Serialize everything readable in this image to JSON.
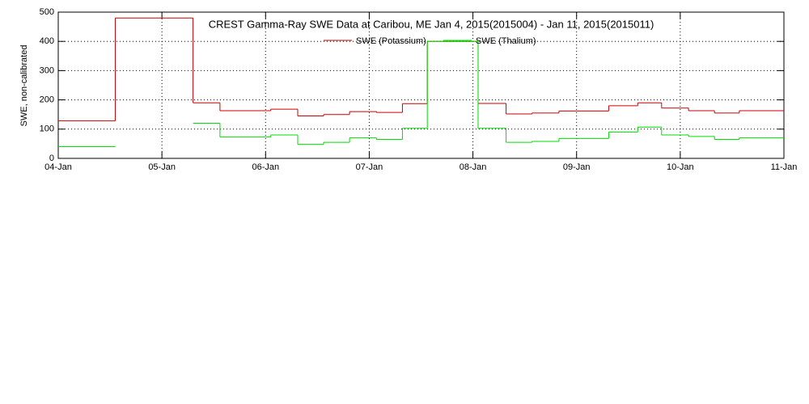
{
  "chart_data": {
    "type": "step",
    "title": "CREST Gamma-Ray SWE Data at Caribou, ME   Jan  4, 2015(2015004) - Jan 11, 2015(2015011)",
    "y_label": "SWE, non-calibrated",
    "x": [
      0,
      0.55,
      1.3,
      1.56,
      2.05,
      2.31,
      2.56,
      2.81,
      3.07,
      3.32,
      3.56,
      4.05,
      4.32,
      4.57,
      4.83,
      5.31,
      5.59,
      5.82,
      6.08,
      6.33,
      6.57
    ],
    "series": [
      {
        "name": "SWE (Potassium)",
        "color": "#cc0000",
        "values": [
          128,
          480,
          190,
          163,
          168,
          145,
          150,
          160,
          157,
          187,
          400,
          188,
          152,
          155,
          162,
          180,
          190,
          172,
          163,
          155,
          163
        ]
      },
      {
        "name": "SWE (Thalium)",
        "color": "#00dd00",
        "values": [
          40,
          null,
          120,
          73,
          80,
          48,
          55,
          70,
          65,
          103,
          400,
          103,
          55,
          58,
          68,
          90,
          107,
          80,
          75,
          65,
          70
        ]
      }
    ],
    "xlim": [
      0,
      7
    ],
    "xticks": [
      {
        "value": 0,
        "label": "04-Jan"
      },
      {
        "value": 1,
        "label": "05-Jan"
      },
      {
        "value": 2,
        "label": "06-Jan"
      },
      {
        "value": 3,
        "label": "07-Jan"
      },
      {
        "value": 4,
        "label": "08-Jan"
      },
      {
        "value": 5,
        "label": "09-Jan"
      },
      {
        "value": 6,
        "label": "10-Jan"
      },
      {
        "value": 7,
        "label": "11-Jan"
      }
    ],
    "ylim": [
      0,
      500
    ],
    "yticks": [
      0,
      100,
      200,
      300,
      400,
      500
    ],
    "grid": true
  }
}
